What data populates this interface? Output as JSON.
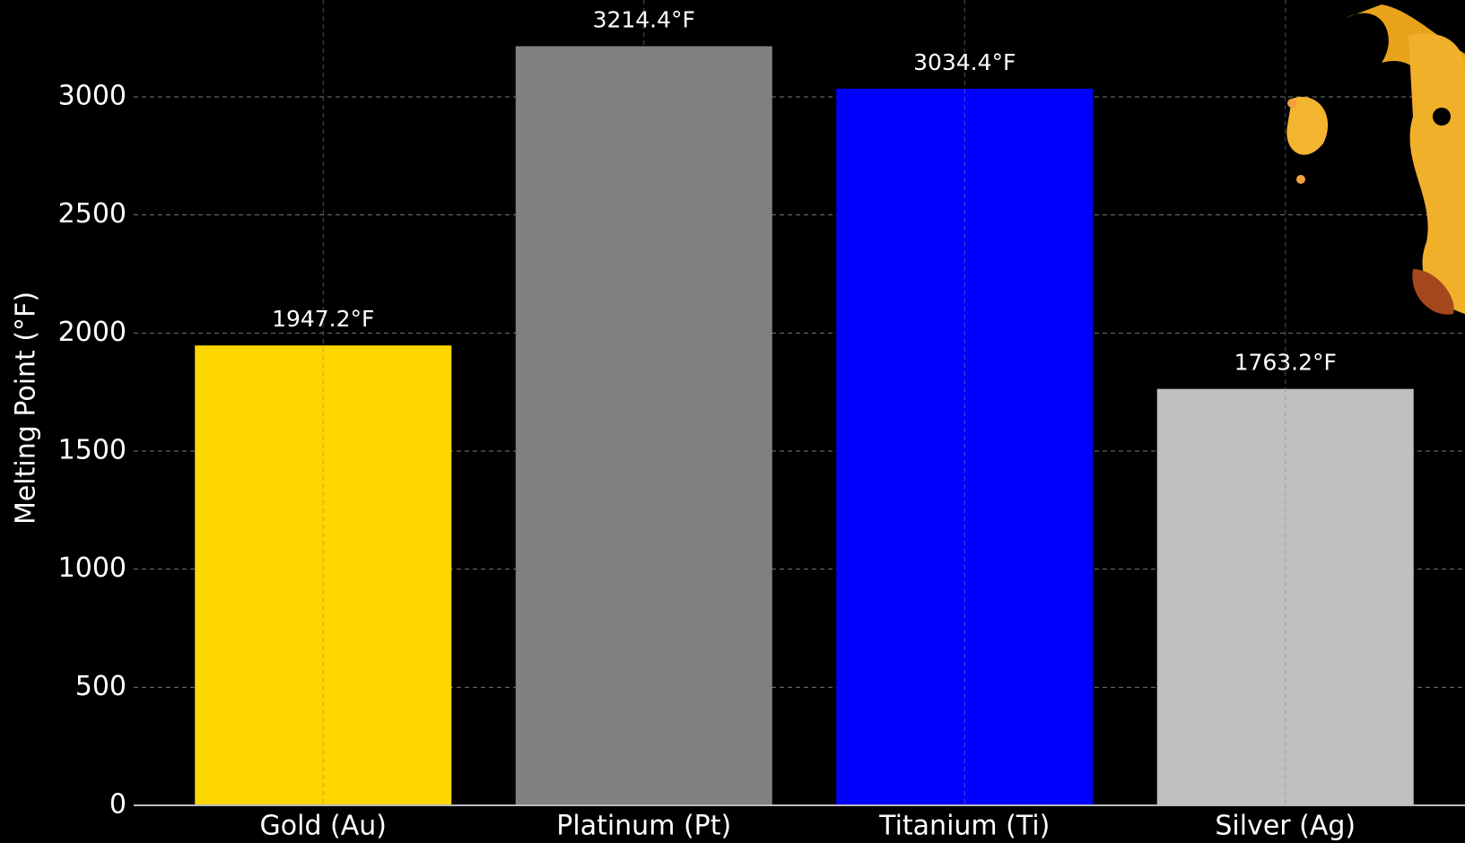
{
  "chart_data": {
    "type": "bar",
    "y_label": "Melting Point (°F)",
    "categories": [
      "Gold (Au)",
      "Platinum (Pt)",
      "Titanium (Ti)",
      "Silver (Ag)"
    ],
    "values": [
      1947.2,
      3214.4,
      3034.4,
      1763.2
    ],
    "value_labels": [
      "1947.2°F",
      "3214.4°F",
      "3034.4°F",
      "1763.2°F"
    ],
    "colors": [
      "#ffd700",
      "#808080",
      "#0000ff",
      "#c0c0c0"
    ],
    "ylim": [
      0,
      3410
    ],
    "yticks": [
      0,
      500,
      1000,
      1500,
      2000,
      2500,
      3000
    ],
    "grid": true
  }
}
